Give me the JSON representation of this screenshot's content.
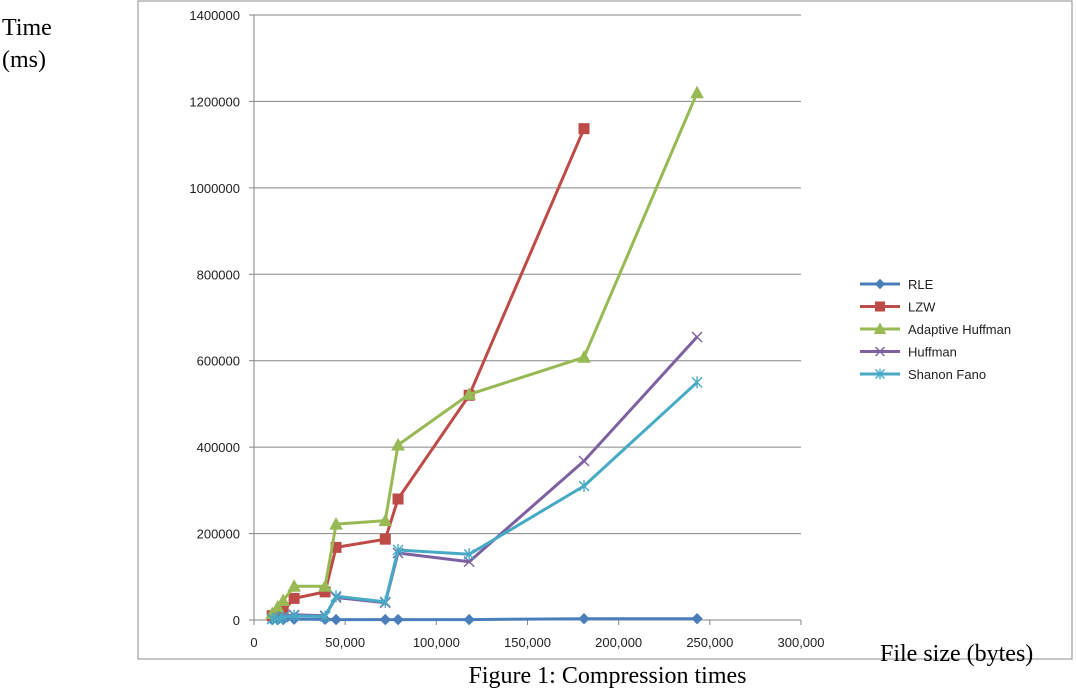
{
  "figure": {
    "y_axis_title_line1": "Time",
    "y_axis_title_line2": "(ms)",
    "x_axis_title": "File size (bytes)",
    "caption": "Figure 1: Compression times"
  },
  "chart_data": {
    "type": "line",
    "title": "",
    "xlabel": "File size (bytes)",
    "ylabel": "Time (ms)",
    "xlim": [
      0,
      300000
    ],
    "ylim": [
      0,
      1400000
    ],
    "x_ticks": [
      0,
      50000,
      100000,
      150000,
      200000,
      250000,
      300000
    ],
    "x_tick_labels": [
      "0",
      "50,000",
      "100,000",
      "150,000",
      "200,000",
      "250,000",
      "300,000"
    ],
    "y_ticks": [
      0,
      200000,
      400000,
      600000,
      800000,
      1000000,
      1200000,
      1400000
    ],
    "y_tick_labels": [
      "0",
      "200000",
      "400000",
      "600000",
      "800000",
      "1000000",
      "1200000",
      "1400000"
    ],
    "grid": "horizontal",
    "legend_position": "right",
    "series": [
      {
        "name": "RLE",
        "color": "#4a7ebb",
        "marker": "diamond",
        "x": [
          10000,
          13000,
          16000,
          22000,
          39000,
          45000,
          72000,
          79000,
          118000,
          181000,
          243000
        ],
        "y": [
          500,
          500,
          1000,
          2000,
          1500,
          1000,
          1000,
          1000,
          1000,
          3000,
          3000
        ]
      },
      {
        "name": "LZW",
        "color": "#be4b48",
        "marker": "square",
        "x": [
          10000,
          13000,
          16000,
          22000,
          39000,
          45000,
          72000,
          79000,
          118000,
          181000
        ],
        "y": [
          10000,
          15000,
          20000,
          50000,
          65000,
          168000,
          187000,
          280000,
          520000,
          1137000
        ]
      },
      {
        "name": "Adaptive Huffman",
        "color": "#98b954",
        "marker": "triangle",
        "x": [
          10000,
          13000,
          16000,
          22000,
          39000,
          45000,
          72000,
          79000,
          118000,
          181000,
          243000
        ],
        "y": [
          15000,
          30000,
          45000,
          78000,
          78000,
          222000,
          230000,
          405000,
          522000,
          608000,
          1220000
        ]
      },
      {
        "name": "Huffman",
        "color": "#7d60a0",
        "marker": "x",
        "x": [
          10000,
          13000,
          16000,
          22000,
          39000,
          45000,
          72000,
          79000,
          118000,
          181000,
          243000
        ],
        "y": [
          3000,
          5000,
          8000,
          12000,
          10000,
          52000,
          40000,
          155000,
          135000,
          368000,
          655000
        ]
      },
      {
        "name": "Shanon Fano",
        "color": "#46aac5",
        "marker": "star",
        "x": [
          10000,
          13000,
          16000,
          22000,
          39000,
          45000,
          72000,
          79000,
          118000,
          181000,
          243000
        ],
        "y": [
          2000,
          4000,
          6000,
          10000,
          8000,
          55000,
          42000,
          162000,
          152000,
          310000,
          550000
        ]
      }
    ]
  }
}
